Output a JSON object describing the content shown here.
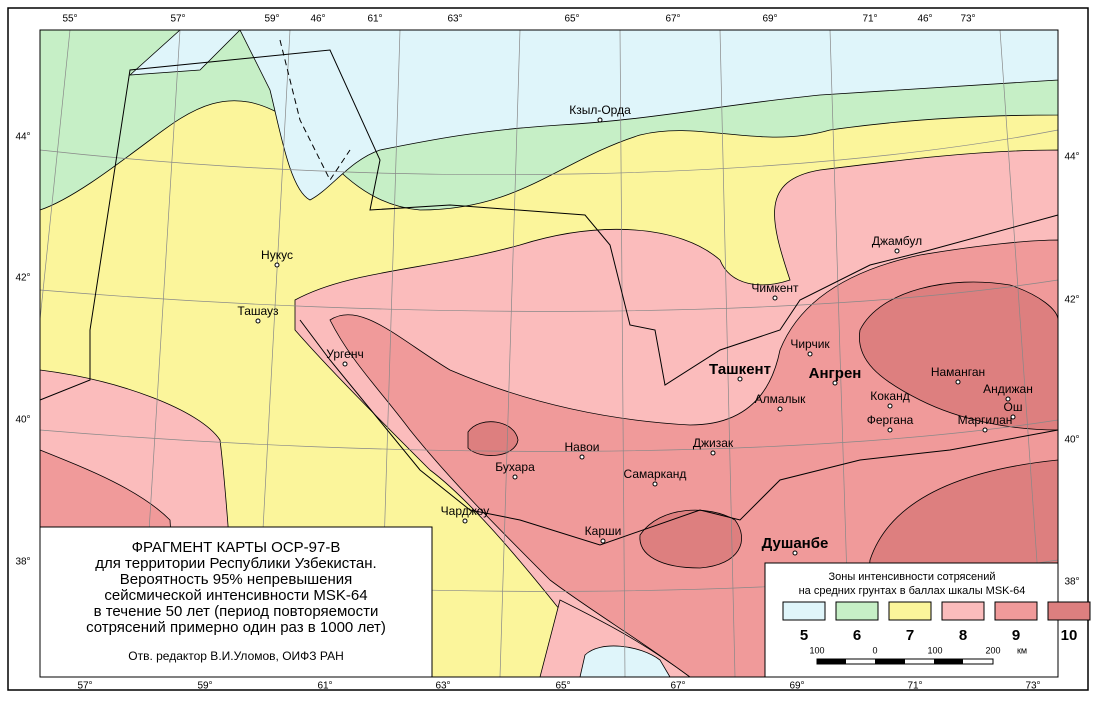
{
  "title_block": {
    "lines": [
      "ФРАГМЕНТ КАРТЫ ОСР-97-В",
      "для территории Республики Узбекистан.",
      "Вероятность 95% непревышения",
      "сейсмической интенсивности MSK-64",
      "в течение 50 лет (период повторяемости",
      "сотрясений примерно один раз в 1000 лет)"
    ],
    "editor": "Отв. редактор В.И.Уломов, ОИФЗ РАН"
  },
  "legend": {
    "title_lines": [
      "Зоны интенсивности сотрясений",
      "на средних грунтах в баллах шкалы MSK-64"
    ],
    "zones": [
      {
        "label": "5",
        "color": "#dff5fa"
      },
      {
        "label": "6",
        "color": "#c6efc6"
      },
      {
        "label": "7",
        "color": "#fbf59b"
      },
      {
        "label": "8",
        "color": "#fbbcbc"
      },
      {
        "label": "9",
        "color": "#f09a9a"
      },
      {
        "label": "10",
        "color": "#dd7f7f"
      }
    ],
    "scale": {
      "labels": [
        "100",
        "0",
        "100",
        "200"
      ],
      "unit": "км"
    }
  },
  "cities": [
    "Кзыл-Орда",
    "Нукус",
    "Ташауз",
    "Ургенч",
    "Джамбул",
    "Чимкент",
    "Чирчик",
    "Ташкент",
    "Ангрен",
    "Алмалык",
    "Коканд",
    "Наманган",
    "Андижан",
    "Ош",
    "Фергана",
    "Маргилан",
    "Навои",
    "Бухара",
    "Джизак",
    "Самарканд",
    "Чарджоу",
    "Карши",
    "Душанбе"
  ],
  "graticule": {
    "top": [
      "55°",
      "57°",
      "59°",
      "46°",
      "61°",
      "63°",
      "65°",
      "67°",
      "69°",
      "71°",
      "46°",
      "73°"
    ],
    "bottom": [
      "57°",
      "59°",
      "61°",
      "63°",
      "65°",
      "67°",
      "69°",
      "71°",
      "73°"
    ],
    "left": [
      "44°",
      "42°",
      "40°",
      "38°"
    ],
    "right": [
      "44°",
      "42°",
      "40°",
      "38°"
    ]
  }
}
